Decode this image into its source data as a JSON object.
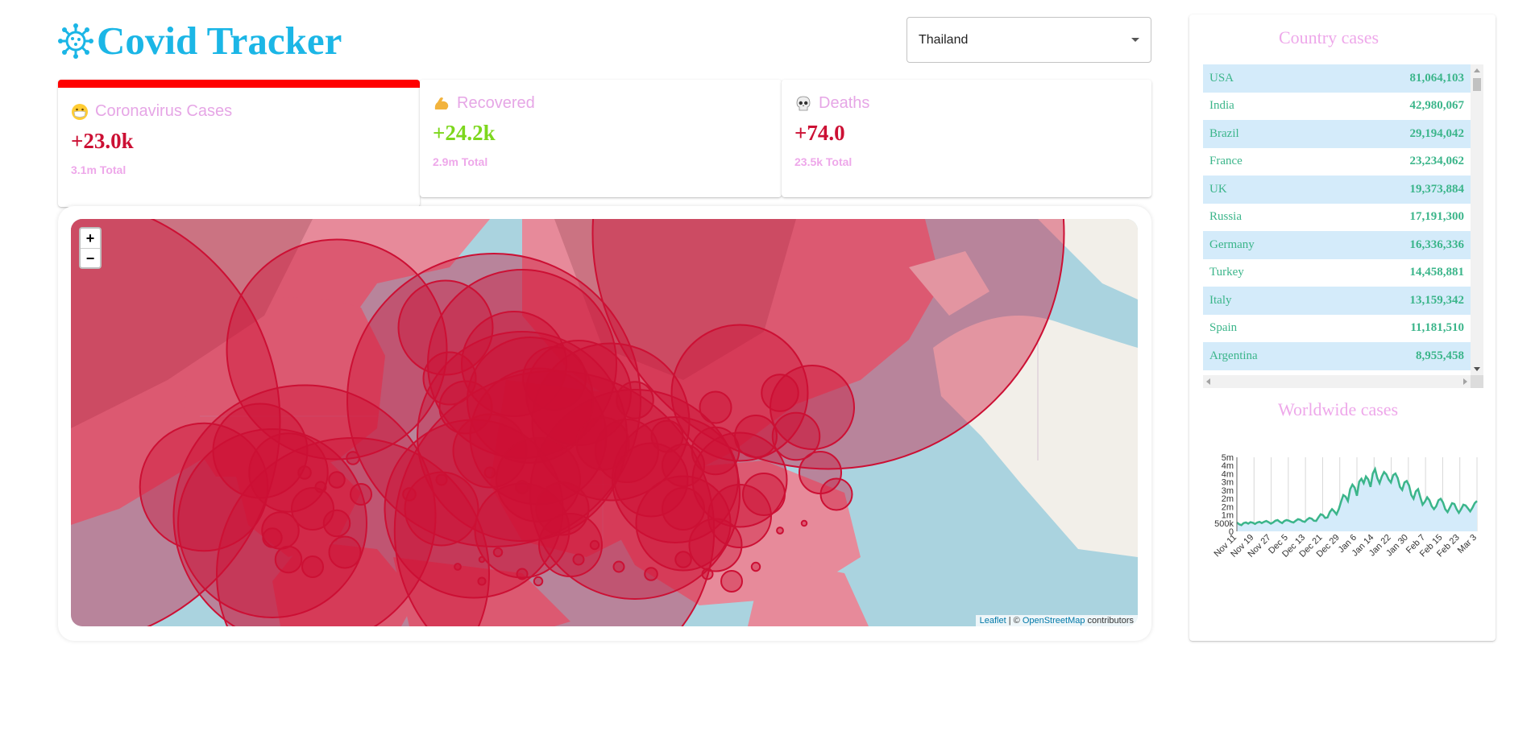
{
  "header": {
    "title": "Covid Tracker",
    "selected_country": "Thailand"
  },
  "infoboxes": [
    {
      "title": "Coronavirus Cases",
      "emoji": "mask-face-icon",
      "value": "+23.0k",
      "total": "3.1m Total",
      "selected": true,
      "color": "#cc1034"
    },
    {
      "title": "Recovered",
      "emoji": "flexed-biceps-icon",
      "value": "+24.2k",
      "total": "2.9m Total",
      "selected": false,
      "color": "#7dd71d"
    },
    {
      "title": "Deaths",
      "emoji": "skull-icon",
      "value": "+74.0",
      "total": "23.5k Total",
      "selected": false,
      "color": "#cc1034"
    }
  ],
  "map": {
    "zoom_in": "+",
    "zoom_out": "−",
    "attribution_leaflet": "Leaflet",
    "attribution_sep": " | © ",
    "attribution_osm": "OpenStreetMap",
    "attribution_tail": " contributors",
    "circle_color": "#cc1034"
  },
  "country_cases": {
    "title": "Country cases",
    "rows": [
      {
        "country": "USA",
        "cases": "81,064,103"
      },
      {
        "country": "India",
        "cases": "42,980,067"
      },
      {
        "country": "Brazil",
        "cases": "29,194,042"
      },
      {
        "country": "France",
        "cases": "23,234,062"
      },
      {
        "country": "UK",
        "cases": "19,373,884"
      },
      {
        "country": "Russia",
        "cases": "17,191,300"
      },
      {
        "country": "Germany",
        "cases": "16,336,336"
      },
      {
        "country": "Turkey",
        "cases": "14,458,881"
      },
      {
        "country": "Italy",
        "cases": "13,159,342"
      },
      {
        "country": "Spain",
        "cases": "11,181,510"
      },
      {
        "country": "Argentina",
        "cases": "8,955,458"
      }
    ]
  },
  "worldwide": {
    "title": "Worldwide cases"
  },
  "chart_data": {
    "type": "area",
    "title": "Worldwide cases",
    "y_ticks": [
      "0",
      "500k",
      "1m",
      "2m",
      "2m",
      "3m",
      "3m",
      "4m",
      "4m",
      "5m"
    ],
    "x_ticks": [
      "Nov 11",
      "Nov 19",
      "Nov 27",
      "Dec 5",
      "Dec 13",
      "Dec 21",
      "Dec 29",
      "Jan 6",
      "Jan 14",
      "Jan 22",
      "Jan 30",
      "Feb 7",
      "Feb 15",
      "Feb 23",
      "Mar 3"
    ],
    "ylim": [
      0,
      5000000
    ],
    "line_color": "#3bb58a",
    "fill_color": "#d4ebfa",
    "series": [
      {
        "values": [
          600000,
          480000,
          420000,
          560000,
          600000,
          520000,
          620000,
          580000,
          500000,
          600000,
          640000,
          560000,
          640000,
          700000,
          620000,
          520000,
          600000,
          720000,
          760000,
          640000,
          560000,
          700000,
          760000,
          720000,
          640000,
          600000,
          720000,
          820000,
          780000,
          680000,
          640000,
          800000,
          900000,
          860000,
          720000,
          700000,
          940000,
          1150000,
          1100000,
          900000,
          940000,
          1300000,
          1500000,
          1350000,
          1150000,
          1500000,
          2000000,
          2450000,
          2350000,
          2050000,
          2850000,
          3150000,
          2950000,
          2400000,
          3350000,
          3550000,
          3250000,
          3700000,
          3500000,
          3000000,
          3900000,
          4200000,
          3600000,
          3250000,
          3700000,
          4000000,
          3850000,
          3500000,
          3300000,
          3800000,
          3900000,
          3600000,
          3000000,
          2800000,
          3300000,
          3400000,
          3100000,
          2450000,
          2200000,
          2700000,
          2850000,
          2300000,
          1800000,
          2000000,
          2300000,
          2100000,
          1700000,
          1500000,
          1700000,
          2100000,
          2200000,
          1950000,
          1500000,
          1300000,
          1600000,
          1900000,
          1850000,
          1500000,
          1250000,
          1500000,
          1800000,
          1750000,
          1550000,
          1350000,
          1600000,
          1900000,
          2050000
        ]
      }
    ]
  }
}
